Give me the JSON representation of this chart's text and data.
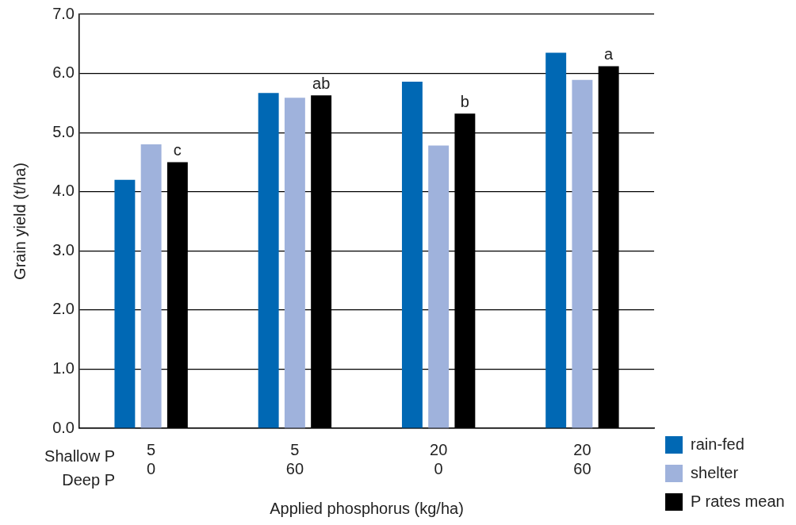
{
  "chart_data": {
    "type": "bar",
    "xlabel": "Applied phosphorus (kg/ha)",
    "ylabel": "Grain yield (t/ha)",
    "categories": [
      "5\n0",
      "5\n60",
      "20\n0",
      "20\n60"
    ],
    "series": [
      {
        "name": "rain-fed",
        "color": "#0068b4",
        "values": [
          4.2,
          5.67,
          5.86,
          6.35
        ]
      },
      {
        "name": "shelter",
        "color": "#9fb2dc",
        "values": [
          4.8,
          5.59,
          4.78,
          5.89
        ]
      },
      {
        "name": "P rates mean",
        "color": "#000000",
        "values": [
          4.5,
          5.63,
          5.32,
          6.12
        ],
        "value_labels": [
          "c",
          "ab",
          "b",
          "a"
        ]
      }
    ],
    "ylim": [
      0,
      7
    ],
    "yticks": [
      {
        "value": 0,
        "label": "0.0"
      },
      {
        "value": 1,
        "label": "1.0"
      },
      {
        "value": 2,
        "label": "2.0"
      },
      {
        "value": 3,
        "label": "3.0"
      },
      {
        "value": 4,
        "label": "4.0"
      },
      {
        "value": 5,
        "label": "5.0"
      },
      {
        "value": 6,
        "label": "6.0"
      },
      {
        "value": 7,
        "label": "7.0"
      }
    ],
    "grid": "y",
    "legend": "right",
    "annotations": [
      "Shallow P",
      "Deep P"
    ]
  }
}
